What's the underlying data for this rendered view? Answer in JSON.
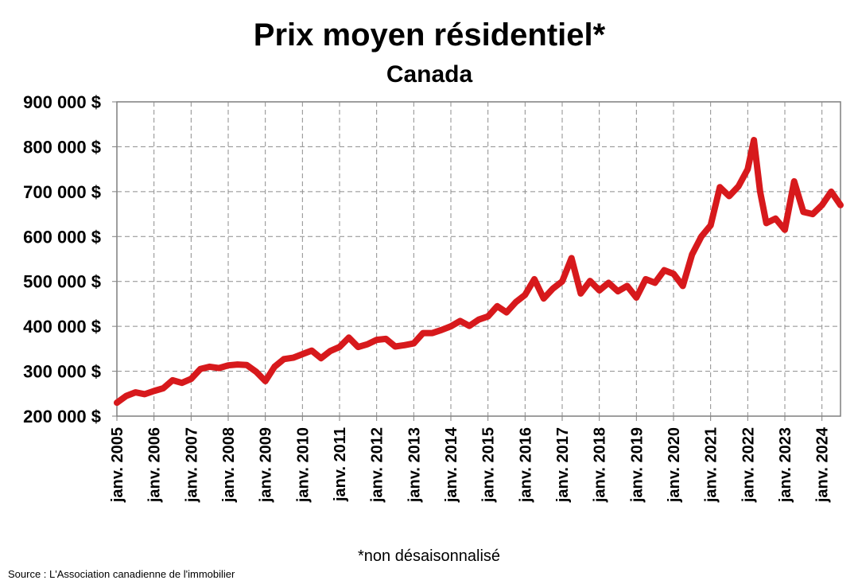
{
  "chart_data": {
    "type": "line",
    "title": "Prix moyen résidentiel*",
    "subtitle": "Canada",
    "xlabel": "",
    "ylabel": "",
    "ylim": [
      200000,
      900000
    ],
    "yticks": [
      200000,
      300000,
      400000,
      500000,
      600000,
      700000,
      800000,
      900000
    ],
    "ytick_labels": [
      "200 000 $",
      "300 000 $",
      "400 000 $",
      "500 000 $",
      "600 000 $",
      "700 000 $",
      "800 000 $",
      "900 000 $"
    ],
    "xlim": [
      "2005-01",
      "2024-07"
    ],
    "xticks": [
      "2005-01",
      "2006-01",
      "2007-01",
      "2008-01",
      "2009-01",
      "2010-01",
      "2011-01",
      "2012-01",
      "2013-01",
      "2014-01",
      "2015-01",
      "2016-01",
      "2017-01",
      "2018-01",
      "2019-01",
      "2020-01",
      "2021-01",
      "2022-01",
      "2023-01",
      "2024-01"
    ],
    "xtick_labels": [
      "janv. 2005",
      "janv. 2006",
      "janv. 2007",
      "janv. 2008",
      "janv. 2009",
      "janv. 2010",
      "janv. 2011",
      "janv. 2012",
      "janv. 2013",
      "janv. 2014",
      "janv. 2015",
      "janv. 2016",
      "janv. 2017",
      "janv. 2018",
      "janv. 2019",
      "janv. 2020",
      "janv. 2021",
      "janv. 2022",
      "janv. 2023",
      "janv. 2024"
    ],
    "grid": true,
    "line_color": "#d7191c",
    "series": [
      {
        "x": [
          "2005-01",
          "2005-04",
          "2005-07",
          "2005-10",
          "2006-01",
          "2006-04",
          "2006-07",
          "2006-10",
          "2007-01",
          "2007-04",
          "2007-07",
          "2007-10",
          "2008-01",
          "2008-04",
          "2008-07",
          "2008-10",
          "2009-01",
          "2009-04",
          "2009-07",
          "2009-10",
          "2010-01",
          "2010-04",
          "2010-07",
          "2010-10",
          "2011-01",
          "2011-04",
          "2011-07",
          "2011-10",
          "2012-01",
          "2012-04",
          "2012-07",
          "2012-10",
          "2013-01",
          "2013-04",
          "2013-07",
          "2013-10",
          "2014-01",
          "2014-04",
          "2014-07",
          "2014-10",
          "2015-01",
          "2015-04",
          "2015-07",
          "2015-10",
          "2016-01",
          "2016-04",
          "2016-07",
          "2016-10",
          "2017-01",
          "2017-04",
          "2017-07",
          "2017-10",
          "2018-01",
          "2018-04",
          "2018-07",
          "2018-10",
          "2019-01",
          "2019-04",
          "2019-07",
          "2019-10",
          "2020-01",
          "2020-04",
          "2020-07",
          "2020-10",
          "2021-01",
          "2021-04",
          "2021-07",
          "2021-10",
          "2022-01",
          "2022-03",
          "2022-05",
          "2022-07",
          "2022-10",
          "2023-01",
          "2023-04",
          "2023-07",
          "2023-10",
          "2024-01",
          "2024-04",
          "2024-07"
        ],
        "values": [
          230000,
          245000,
          253000,
          249000,
          256000,
          262000,
          280000,
          274000,
          283000,
          305000,
          310000,
          307000,
          313000,
          315000,
          314000,
          299000,
          278000,
          310000,
          327000,
          330000,
          338000,
          346000,
          329000,
          345000,
          354000,
          375000,
          354000,
          360000,
          370000,
          372000,
          355000,
          358000,
          362000,
          385000,
          385000,
          392000,
          400000,
          412000,
          401000,
          415000,
          422000,
          445000,
          431000,
          454000,
          470000,
          505000,
          462000,
          484000,
          500000,
          552000,
          473000,
          501000,
          480000,
          497000,
          478000,
          490000,
          464000,
          505000,
          497000,
          525000,
          517000,
          490000,
          560000,
          600000,
          625000,
          710000,
          690000,
          712000,
          750000,
          815000,
          700000,
          630000,
          640000,
          615000,
          723000,
          655000,
          650000,
          670000,
          700000,
          670000
        ]
      }
    ],
    "footnote": "*non désaisonnalisé",
    "source": "Source : L'Association canadienne de l'immobilier"
  }
}
